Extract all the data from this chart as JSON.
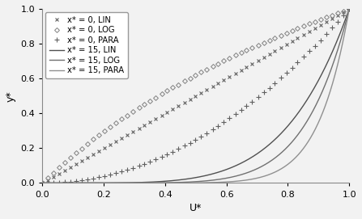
{
  "title": "",
  "xlabel": "U*",
  "ylabel": "y*",
  "xlim": [
    0,
    1
  ],
  "ylim": [
    0,
    1
  ],
  "xticks": [
    0,
    0.2,
    0.4,
    0.6,
    0.8,
    1
  ],
  "yticks": [
    0,
    0.2,
    0.4,
    0.6,
    0.8,
    1
  ],
  "legend_entries": [
    "x* = 0, LIN",
    "x* = 0, LOG",
    "x* = 0, PARA",
    "x* = 15, LIN",
    "x* = 15, LOG",
    "x* = 15, PARA"
  ],
  "n_markers": 55,
  "figsize": [
    4.47,
    2.71
  ],
  "dpi": 100,
  "lin0_color": "#606060",
  "log0_color": "#808080",
  "para0_color": "#606060",
  "lin15_color": "#505050",
  "log15_color": "#707070",
  "para15_color": "#909090"
}
